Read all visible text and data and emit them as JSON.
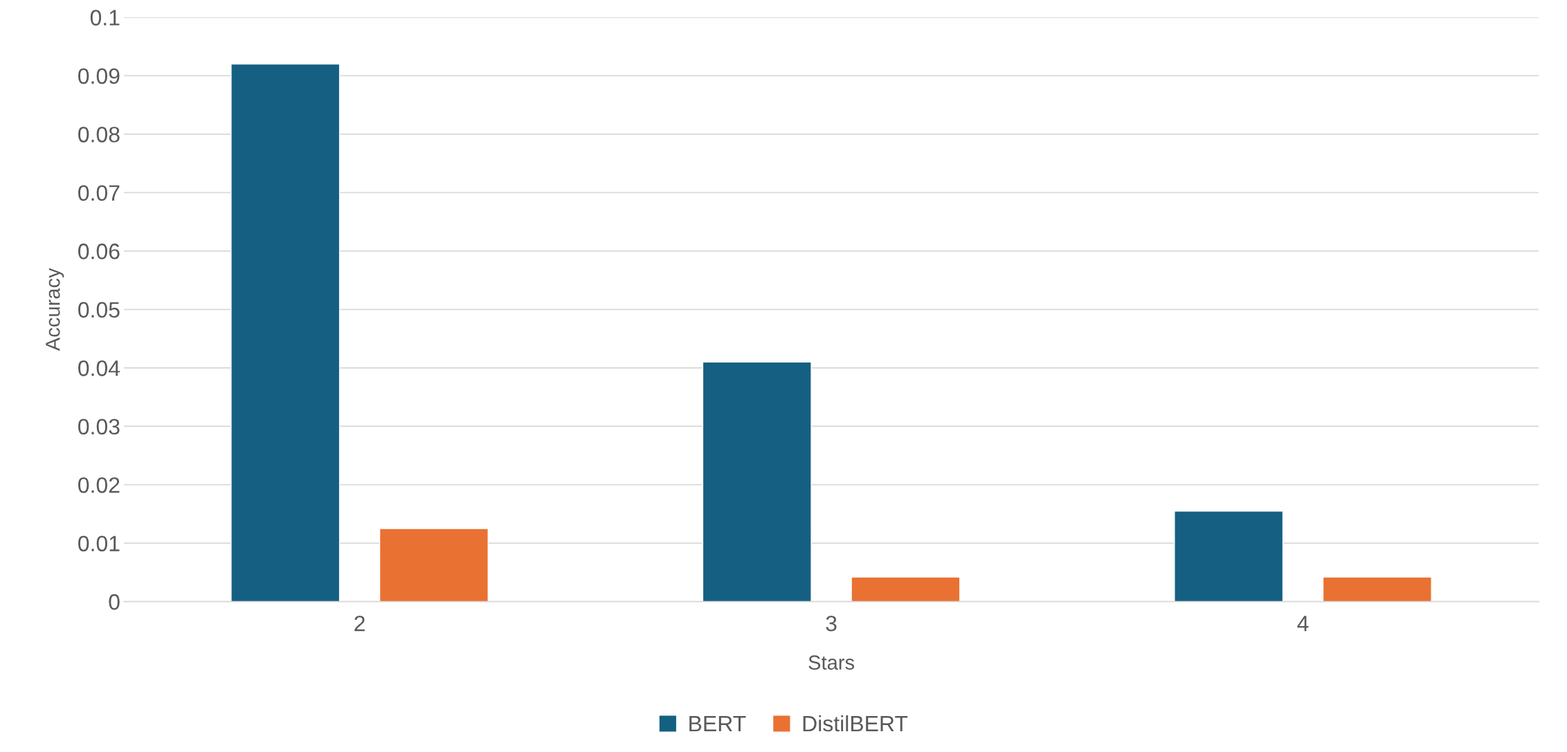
{
  "chart_data": {
    "type": "bar",
    "xlabel": "Stars",
    "ylabel": "Accuracy",
    "categories": [
      "2",
      "3",
      "4"
    ],
    "series": [
      {
        "name": "BERT",
        "color": "#156082",
        "values": [
          0.092,
          0.041,
          0.0155
        ]
      },
      {
        "name": "DistilBERT",
        "color": "#e97132",
        "values": [
          0.0125,
          0.0042,
          0.0042
        ]
      }
    ],
    "ylim": [
      0,
      0.1
    ],
    "yticks": [
      0,
      0.01,
      0.02,
      0.03,
      0.04,
      0.05,
      0.06,
      0.07,
      0.08,
      0.09,
      0.1
    ],
    "grid": "y",
    "legend": "bottom"
  }
}
